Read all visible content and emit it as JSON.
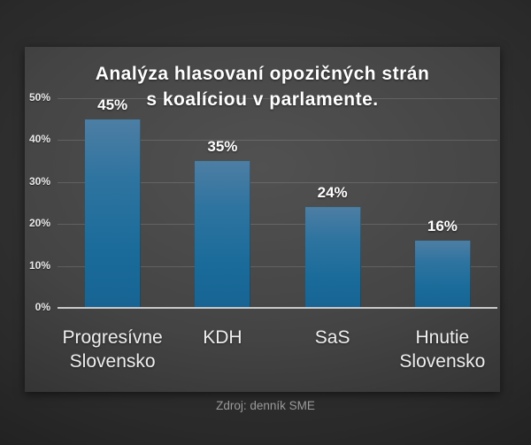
{
  "chart_data": {
    "type": "bar",
    "title_line1": "Analýza hlasovaní opozičných strán",
    "title_line2": "s koalíciou v parlamente.",
    "categories": [
      "Progresívne Slovensko",
      "KDH",
      "SaS",
      "Hnutie Slovensko"
    ],
    "category_lines": [
      [
        "Progresívne",
        "Slovensko"
      ],
      [
        "KDH"
      ],
      [
        "SaS"
      ],
      [
        "Hnutie",
        "Slovensko"
      ]
    ],
    "values": [
      45,
      35,
      24,
      16
    ],
    "value_labels": [
      "45%",
      "35%",
      "24%",
      "16%"
    ],
    "y_ticks": [
      0,
      10,
      20,
      30,
      40,
      50
    ],
    "y_tick_labels": [
      "0%",
      "10%",
      "20%",
      "30%",
      "40%",
      "50%"
    ],
    "ylim": [
      0,
      50
    ],
    "grid": true,
    "legend": "none",
    "colors": {
      "bar_top": "#4d7ea4",
      "bar_bottom": "#176493",
      "panel_center": "#515151",
      "panel_edge": "#2f2f2f",
      "background_center": "#3a3a3a",
      "background_edge": "#141414",
      "gridline": "#5c5c5c",
      "axis_line": "#c9c9c9",
      "title_text": "#ffffff",
      "tick_text": "#e8e8e8",
      "xlabel_text": "#efefef",
      "source_text": "#9a9a9a"
    }
  },
  "footer": {
    "source": "Zdroj: denník SME"
  }
}
